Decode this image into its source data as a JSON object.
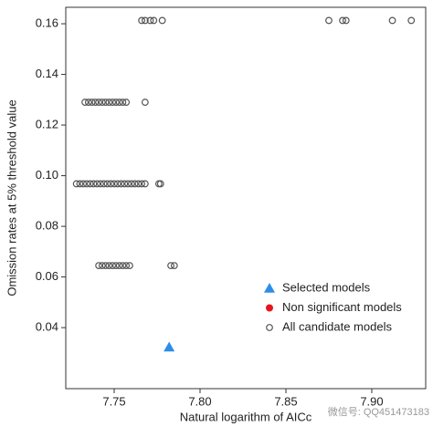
{
  "chart_data": {
    "type": "scatter",
    "x_label": "Natural logarithm of AICc",
    "y_label": "Omission rates at 5% threshold value",
    "xlim": [
      7.7218,
      7.9314
    ],
    "ylim": [
      0.0159,
      0.1665
    ],
    "xticks": [
      7.75,
      {
        "value": 7.8,
        "label": "7.80"
      },
      7.85,
      {
        "value": 7.9,
        "label": "7.90"
      }
    ],
    "yticks": [
      0.04,
      0.06,
      0.08,
      {
        "value": 0.1,
        "label": "0.10"
      },
      0.12,
      0.14,
      0.16
    ],
    "legend": "bottom-right",
    "watermark": "微信号: QQ451473183",
    "series": [
      {
        "name": "Selected models",
        "color": "#2b8ee8",
        "marker": "triangle",
        "x": [
          7.782
        ],
        "y": [
          0.0323
        ]
      },
      {
        "name": "Non significant models",
        "color": "#e8141c",
        "marker": "circle",
        "x": [],
        "y": []
      },
      {
        "name": "All candidate models",
        "color": "#555555",
        "marker": "open-circle",
        "x": [
          7.728,
          7.73,
          7.732,
          7.734,
          7.736,
          7.738,
          7.74,
          7.742,
          7.744,
          7.746,
          7.748,
          7.75,
          7.752,
          7.754,
          7.756,
          7.758,
          7.76,
          7.762,
          7.764,
          7.766,
          7.768,
          7.776,
          7.777,
          7.733,
          7.735,
          7.737,
          7.739,
          7.741,
          7.743,
          7.745,
          7.747,
          7.749,
          7.751,
          7.753,
          7.755,
          7.757,
          7.768,
          7.741,
          7.743,
          7.745,
          7.747,
          7.749,
          7.751,
          7.753,
          7.755,
          7.757,
          7.759,
          7.783,
          7.785,
          7.766,
          7.768,
          7.771,
          7.773,
          7.778,
          7.875,
          7.883,
          7.885,
          7.912,
          7.923
        ],
        "y": [
          0.0968,
          0.0968,
          0.0968,
          0.0968,
          0.0968,
          0.0968,
          0.0968,
          0.0968,
          0.0968,
          0.0968,
          0.0968,
          0.0968,
          0.0968,
          0.0968,
          0.0968,
          0.0968,
          0.0968,
          0.0968,
          0.0968,
          0.0968,
          0.0968,
          0.0968,
          0.0968,
          0.129,
          0.129,
          0.129,
          0.129,
          0.129,
          0.129,
          0.129,
          0.129,
          0.129,
          0.129,
          0.129,
          0.129,
          0.129,
          0.129,
          0.0645,
          0.0645,
          0.0645,
          0.0645,
          0.0645,
          0.0645,
          0.0645,
          0.0645,
          0.0645,
          0.0645,
          0.0645,
          0.0645,
          0.1613,
          0.1613,
          0.1613,
          0.1613,
          0.1613,
          0.1613,
          0.1613,
          0.1613,
          0.1613,
          0.1613
        ]
      }
    ]
  }
}
